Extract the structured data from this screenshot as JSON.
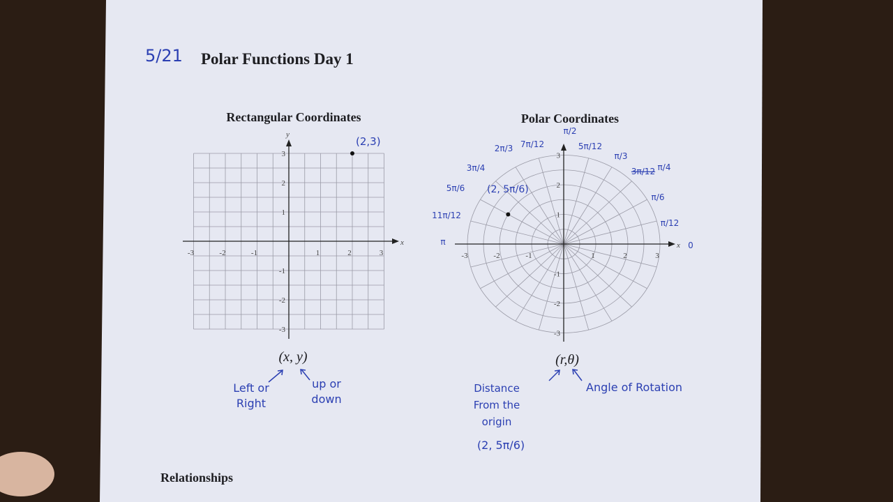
{
  "header": {
    "date": "5/21",
    "title": "Polar Functions Day 1"
  },
  "rectangular": {
    "title": "Rectangular Coordinates",
    "x_axis": "x",
    "y_axis": "y",
    "x_ticks": [
      "-3",
      "-2",
      "-1",
      "1",
      "2",
      "3"
    ],
    "y_ticks": [
      "-3",
      "-2",
      "-1",
      "1",
      "2",
      "3"
    ],
    "point_label": "(2,3)",
    "notation": "(x, y)",
    "notes": [
      [
        "Left or",
        "Right"
      ],
      [
        "up or",
        "down"
      ]
    ]
  },
  "polar": {
    "title": "Polar Coordinates",
    "x_axis": "x",
    "x_ticks": [
      "-3",
      "-2",
      "-1",
      "1",
      "2",
      "3"
    ],
    "y_ticks": [
      "-3",
      "-2",
      "-1",
      "1",
      "2",
      "3"
    ],
    "angle_labels": [
      "π/2",
      "5π/12",
      "π/3",
      "3π/12",
      "π/4",
      "π/6",
      "π/12",
      "0",
      "π",
      "11π/12",
      "5π/6",
      "3π/4",
      "2π/3",
      "7π/12"
    ],
    "point_label": "(2, 5π/6)",
    "notation": "(r,θ)",
    "notes": [
      [
        "Distance",
        "From the",
        "origin"
      ],
      [
        "Angle of Rotation"
      ]
    ],
    "example": "(2, 5π/6)"
  },
  "footer": {
    "section": "Relationships"
  }
}
